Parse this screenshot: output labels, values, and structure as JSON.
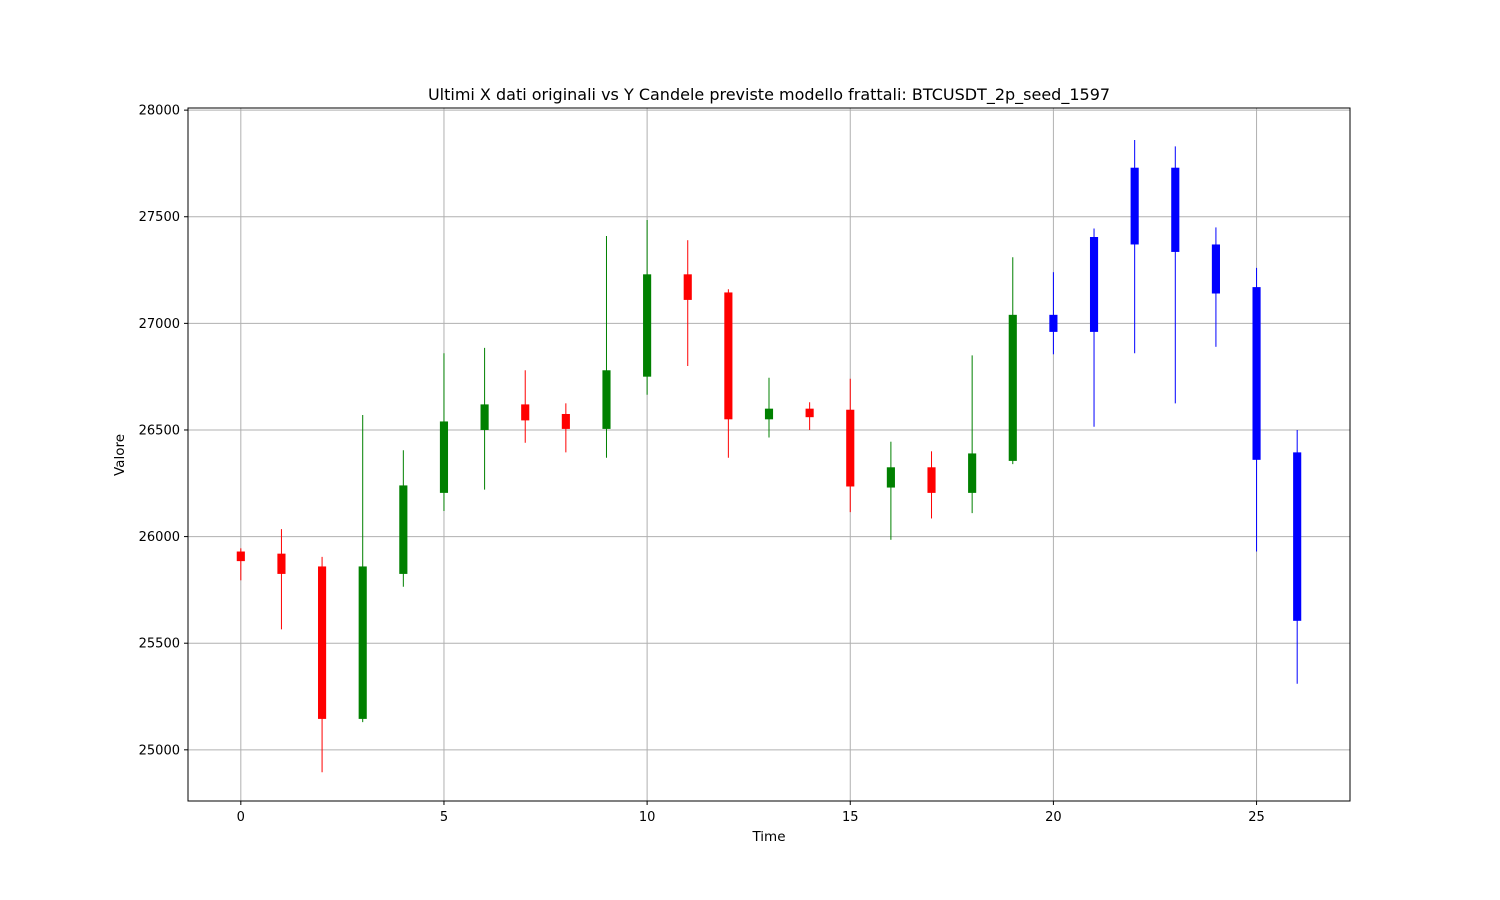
{
  "chart_data": {
    "type": "candlestick",
    "title": "Ultimi X dati originali vs Y Candele previste modello frattali: BTCUSDT_2p_seed_1597",
    "xlabel": "Time",
    "ylabel": "Valore",
    "xlim": [
      -1.3,
      27.3
    ],
    "ylim": [
      24760,
      28010
    ],
    "x_ticks": [
      0,
      5,
      10,
      15,
      20,
      25
    ],
    "y_ticks": [
      25000,
      25500,
      26000,
      26500,
      27000,
      27500,
      28000
    ],
    "grid": true,
    "colors": {
      "up": "#008000",
      "down": "#ff0000",
      "predicted": "#0000ff"
    },
    "candles": [
      {
        "t": 0,
        "open": 25930,
        "close": 25885,
        "high": 25945,
        "low": 25795,
        "group": "down"
      },
      {
        "t": 1,
        "open": 25920,
        "close": 25825,
        "high": 26035,
        "low": 25565,
        "group": "down"
      },
      {
        "t": 2,
        "open": 25860,
        "close": 25145,
        "high": 25905,
        "low": 24895,
        "group": "down"
      },
      {
        "t": 3,
        "open": 25145,
        "close": 25860,
        "high": 26570,
        "low": 25130,
        "group": "up"
      },
      {
        "t": 4,
        "open": 25825,
        "close": 26240,
        "high": 26405,
        "low": 25765,
        "group": "up"
      },
      {
        "t": 5,
        "open": 26205,
        "close": 26540,
        "high": 26860,
        "low": 26120,
        "group": "up"
      },
      {
        "t": 6,
        "open": 26500,
        "close": 26620,
        "high": 26885,
        "low": 26220,
        "group": "up"
      },
      {
        "t": 7,
        "open": 26620,
        "close": 26545,
        "high": 26780,
        "low": 26440,
        "group": "down"
      },
      {
        "t": 8,
        "open": 26575,
        "close": 26505,
        "high": 26625,
        "low": 26395,
        "group": "down"
      },
      {
        "t": 9,
        "open": 26505,
        "close": 26780,
        "high": 27410,
        "low": 26370,
        "group": "up"
      },
      {
        "t": 10,
        "open": 26750,
        "close": 27230,
        "high": 27485,
        "low": 26665,
        "group": "up"
      },
      {
        "t": 11,
        "open": 27230,
        "close": 27110,
        "high": 27390,
        "low": 26800,
        "group": "down"
      },
      {
        "t": 12,
        "open": 27145,
        "close": 26550,
        "high": 27160,
        "low": 26370,
        "group": "down"
      },
      {
        "t": 13,
        "open": 26550,
        "close": 26600,
        "high": 26745,
        "low": 26465,
        "group": "up"
      },
      {
        "t": 14,
        "open": 26600,
        "close": 26560,
        "high": 26630,
        "low": 26500,
        "group": "down"
      },
      {
        "t": 15,
        "open": 26595,
        "close": 26235,
        "high": 26740,
        "low": 26115,
        "group": "down"
      },
      {
        "t": 16,
        "open": 26230,
        "close": 26325,
        "high": 26445,
        "low": 25985,
        "group": "up"
      },
      {
        "t": 17,
        "open": 26325,
        "close": 26205,
        "high": 26400,
        "low": 26085,
        "group": "down"
      },
      {
        "t": 18,
        "open": 26205,
        "close": 26390,
        "high": 26850,
        "low": 26110,
        "group": "up"
      },
      {
        "t": 19,
        "open": 26355,
        "close": 27040,
        "high": 27310,
        "low": 26340,
        "group": "up"
      },
      {
        "t": 20,
        "open": 26960,
        "close": 27040,
        "high": 27240,
        "low": 26855,
        "group": "predicted"
      },
      {
        "t": 21,
        "open": 26960,
        "close": 27405,
        "high": 27445,
        "low": 26515,
        "group": "predicted"
      },
      {
        "t": 22,
        "open": 27370,
        "close": 27730,
        "high": 27860,
        "low": 26860,
        "group": "predicted"
      },
      {
        "t": 23,
        "open": 27730,
        "close": 27335,
        "high": 27830,
        "low": 26625,
        "group": "predicted"
      },
      {
        "t": 24,
        "open": 27370,
        "close": 27140,
        "high": 27450,
        "low": 26890,
        "group": "predicted"
      },
      {
        "t": 25,
        "open": 27170,
        "close": 26360,
        "high": 27260,
        "low": 25930,
        "group": "predicted"
      },
      {
        "t": 26,
        "open": 26395,
        "close": 25605,
        "high": 26500,
        "low": 25310,
        "group": "predicted"
      }
    ]
  }
}
